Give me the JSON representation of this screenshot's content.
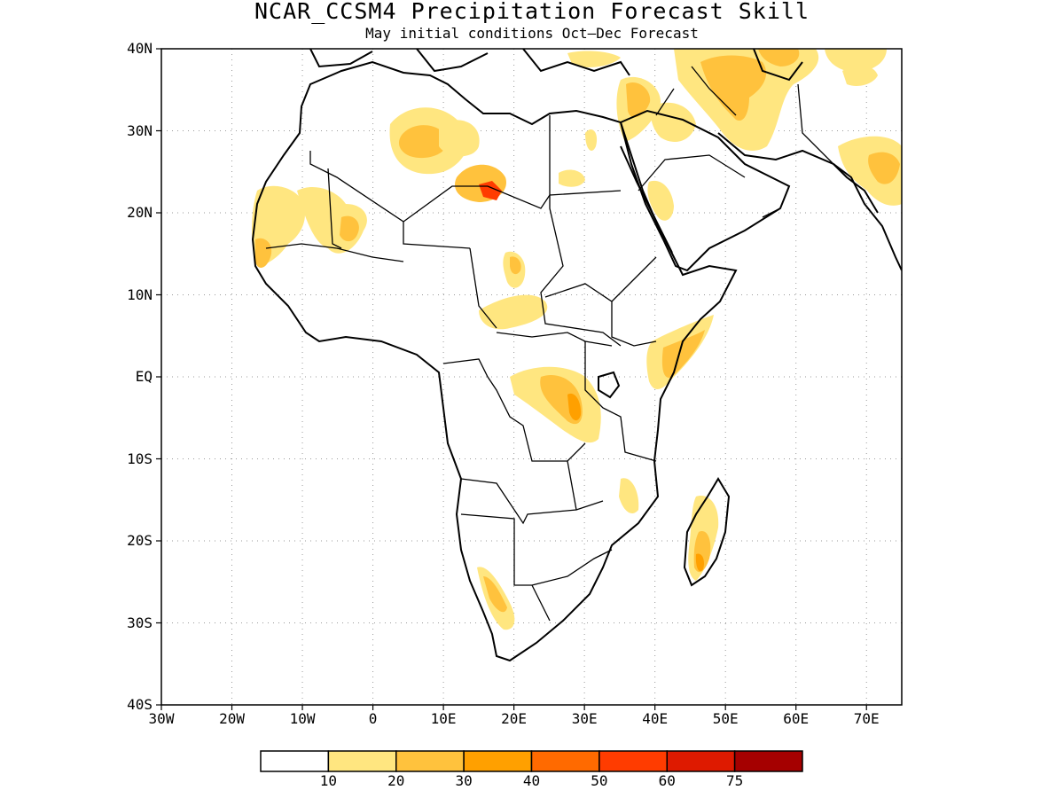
{
  "title": "NCAR_CCSM4 Precipitation Forecast Skill",
  "subtitle": "May initial conditions  Oct–Dec Forecast",
  "map": {
    "lon_range": [
      -30,
      75
    ],
    "lat_range": [
      -40,
      40
    ],
    "gridlines": "dotted",
    "region": "Africa and Arabian Peninsula"
  },
  "y_ticks": [
    "40N",
    "30N",
    "20N",
    "10N",
    "EQ",
    "10S",
    "20S",
    "30S",
    "40S"
  ],
  "x_ticks": [
    "30W",
    "20W",
    "10W",
    "0",
    "10E",
    "20E",
    "30E",
    "40E",
    "50E",
    "60E",
    "70E"
  ],
  "colorbar": {
    "levels": [
      "10",
      "20",
      "30",
      "40",
      "50",
      "60",
      "75"
    ],
    "colors": [
      "#ffffff",
      "#ffe680",
      "#ffc23d",
      "#ffa000",
      "#ff6a00",
      "#ff3c00",
      "#de1a00",
      "#a50000"
    ]
  },
  "skill_regions": [
    {
      "lon": -14,
      "lat": 18,
      "level": "10-20"
    },
    {
      "lon": -12,
      "lat": 20,
      "level": "10-20"
    },
    {
      "lon": -3,
      "lat": 18,
      "level": "20-30"
    },
    {
      "lon": 3,
      "lat": 27,
      "level": "20-30"
    },
    {
      "lon": 12,
      "lat": 22,
      "level": "20-30"
    },
    {
      "lon": 16,
      "lat": 22,
      "level": "40-50"
    },
    {
      "lon": 18,
      "lat": 13,
      "level": "20-30"
    },
    {
      "lon": 20,
      "lat": 8,
      "level": "10-20"
    },
    {
      "lon": 27,
      "lat": -2,
      "level": "20-30"
    },
    {
      "lon": 42,
      "lat": 3,
      "level": "20-30"
    },
    {
      "lon": 39,
      "lat": 21,
      "level": "10-20"
    },
    {
      "lon": 46,
      "lat": -20,
      "level": "20-30"
    },
    {
      "lon": 18,
      "lat": -27,
      "level": "20-30"
    },
    {
      "lon": 54,
      "lat": 36,
      "level": "20-30"
    },
    {
      "lon": 70,
      "lat": 24,
      "level": "20-30"
    },
    {
      "lon": 36,
      "lat": 15,
      "level": "10-20"
    }
  ]
}
